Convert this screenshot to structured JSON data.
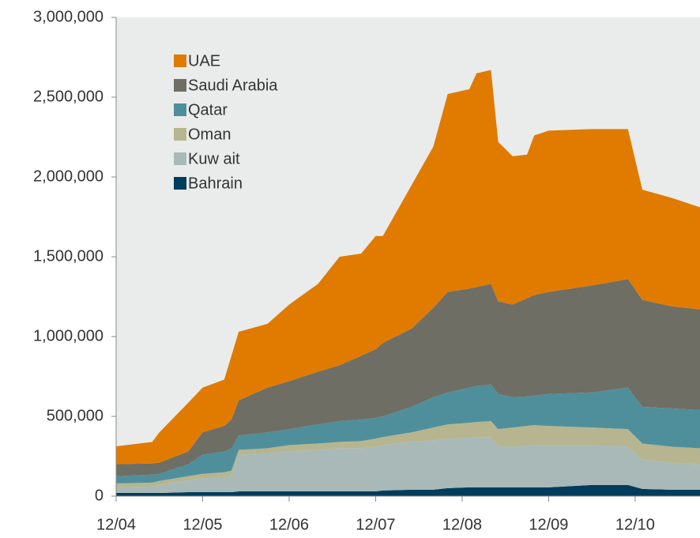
{
  "chart_data": {
    "type": "stacked_area",
    "x": [
      "12/04",
      "05/05",
      "06/05",
      "10/05",
      "12/05",
      "03/06",
      "04/06",
      "05/06",
      "09/06",
      "12/06",
      "04/07",
      "07/07",
      "10/07",
      "12/07",
      "01/08",
      "05/08",
      "08/08",
      "10/08",
      "01/09",
      "02/09",
      "04/09",
      "05/09",
      "07/09",
      "09/09",
      "10/09",
      "12/09",
      "06/10",
      "11/10",
      "01/11",
      "05/11",
      "09/11"
    ],
    "xlim": [
      "12/04",
      "09/11"
    ],
    "xticks": [
      "12/04",
      "12/05",
      "12/06",
      "12/07",
      "12/08",
      "12/09",
      "12/10"
    ],
    "ylim": [
      0,
      3000000
    ],
    "yticks": [
      0,
      {
        "value": 500000,
        "label": "500,000"
      },
      {
        "value": 1000000,
        "label": "1,000,000"
      },
      {
        "value": 1500000,
        "label": "1,500,000"
      },
      {
        "value": 2000000,
        "label": "2,000,000"
      },
      {
        "value": 2500000,
        "label": "2,500,000"
      },
      {
        "value": 3000000,
        "label": "3,000,000"
      }
    ],
    "legend": "top-left",
    "series": [
      {
        "name": "UAE",
        "color": "#e07b00",
        "values": [
          112000,
          135000,
          190000,
          305000,
          280000,
          290000,
          400000,
          430000,
          400000,
          480000,
          550000,
          680000,
          640000,
          710000,
          670000,
          900000,
          1010000,
          1240000,
          1250000,
          1340000,
          1340000,
          1000000,
          930000,
          900000,
          1000000,
          1010000,
          980000,
          940000,
          690000,
          680000,
          640000
        ]
      },
      {
        "name": "Saudi Arabia",
        "color": "#6e6e64",
        "values": [
          75000,
          70000,
          70000,
          80000,
          140000,
          160000,
          180000,
          220000,
          280000,
          300000,
          330000,
          350000,
          400000,
          430000,
          460000,
          490000,
          560000,
          630000,
          620000,
          620000,
          630000,
          580000,
          580000,
          615000,
          630000,
          640000,
          670000,
          680000,
          670000,
          640000,
          630000
        ]
      },
      {
        "name": "Qatar",
        "color": "#4f8f9b",
        "values": [
          45000,
          50000,
          45000,
          75000,
          120000,
          130000,
          140000,
          90000,
          100000,
          100000,
          120000,
          130000,
          135000,
          130000,
          130000,
          160000,
          190000,
          200000,
          220000,
          225000,
          230000,
          220000,
          190000,
          185000,
          185000,
          200000,
          220000,
          260000,
          230000,
          240000,
          240000
        ]
      },
      {
        "name": "Oman",
        "color": "#b6b58f",
        "values": [
          25000,
          25000,
          25000,
          25000,
          30000,
          30000,
          30000,
          30000,
          30000,
          40000,
          40000,
          40000,
          45000,
          50000,
          50000,
          60000,
          80000,
          90000,
          95000,
          95000,
          100000,
          110000,
          120000,
          125000,
          125000,
          120000,
          110000,
          110000,
          100000,
          100000,
          100000
        ]
      },
      {
        "name": "Kuw ait",
        "color": "#a9b9b8",
        "values": [
          35000,
          40000,
          50000,
          75000,
          85000,
          95000,
          105000,
          230000,
          240000,
          250000,
          260000,
          270000,
          270000,
          280000,
          285000,
          300000,
          310000,
          310000,
          310000,
          315000,
          315000,
          255000,
          255000,
          260000,
          265000,
          265000,
          250000,
          240000,
          185000,
          170000,
          160000
        ]
      },
      {
        "name": "Bahrain",
        "color": "#003d5c",
        "values": [
          20000,
          20000,
          20000,
          25000,
          25000,
          25000,
          25000,
          30000,
          30000,
          30000,
          30000,
          30000,
          30000,
          30000,
          35000,
          40000,
          40000,
          50000,
          55000,
          55000,
          55000,
          55000,
          55000,
          55000,
          55000,
          55000,
          70000,
          70000,
          45000,
          40000,
          40000
        ]
      }
    ]
  }
}
